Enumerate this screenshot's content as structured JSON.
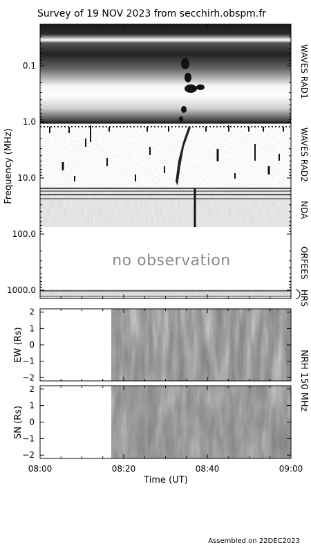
{
  "title": "Survey of 19 NOV 2023 from secchirh.obspm.fr",
  "footer": "Assembled on 22DEC2023",
  "no_observation_text": "no observation",
  "colors": {
    "background": "#ffffff",
    "axis": "#000000",
    "nrh_gray": "#8c8c8c"
  },
  "chart_data": [
    {
      "type": "heatmap",
      "name": "dynamic-spectrum",
      "ylabel": "Frequency (MHz)",
      "y_scale": "log",
      "ylim": [
        0.02,
        1500
      ],
      "y_ticks": [
        {
          "value": 0.1,
          "label": "0.1"
        },
        {
          "value": 1.0,
          "label": "1.0"
        },
        {
          "value": 10.0,
          "label": "10.0"
        },
        {
          "value": 100.0,
          "label": "100.0"
        },
        {
          "value": 1000.0,
          "label": "1000.0"
        }
      ],
      "x_range": [
        "08:00",
        "09:00"
      ],
      "instruments": [
        {
          "label": "WAVES RAD1",
          "freq_range_mhz": [
            0.02,
            1.0
          ]
        },
        {
          "label": "WAVES RAD2",
          "freq_range_mhz": [
            1.0,
            14.0
          ]
        },
        {
          "label": "NDA",
          "freq_range_mhz": [
            14.0,
            80.0
          ]
        },
        {
          "label": "ORFEES",
          "freq_range_mhz": [
            140,
            1000
          ]
        },
        {
          "label": "HRS",
          "freq_range_mhz": [
            1000,
            1500
          ]
        }
      ],
      "observed_instruments": [
        "WAVES RAD1",
        "WAVES RAD2",
        "NDA",
        "HRS"
      ],
      "missing_instruments": [
        "ORFEES"
      ]
    },
    {
      "type": "heatmap",
      "name": "nrh-ew",
      "ylabel": "EW (Rs)",
      "ylim": [
        -2.2,
        2.2
      ],
      "y_ticks": [
        2,
        1,
        0,
        -1,
        -2
      ],
      "data_start": "08:17",
      "data_end": "09:00"
    },
    {
      "type": "heatmap",
      "name": "nrh-sn",
      "ylabel": "SN (Rs)",
      "ylim": [
        -2.2,
        2.2
      ],
      "y_ticks": [
        2,
        1,
        0,
        -1,
        -2
      ],
      "data_start": "08:17",
      "data_end": "09:00"
    }
  ],
  "nrh_label": "NRH 150 MHz",
  "x_axis": {
    "label": "Time (UT)",
    "ticks": [
      "08:00",
      "08:20",
      "08:40",
      "09:00"
    ],
    "minutes": [
      0,
      20,
      40,
      60
    ]
  }
}
